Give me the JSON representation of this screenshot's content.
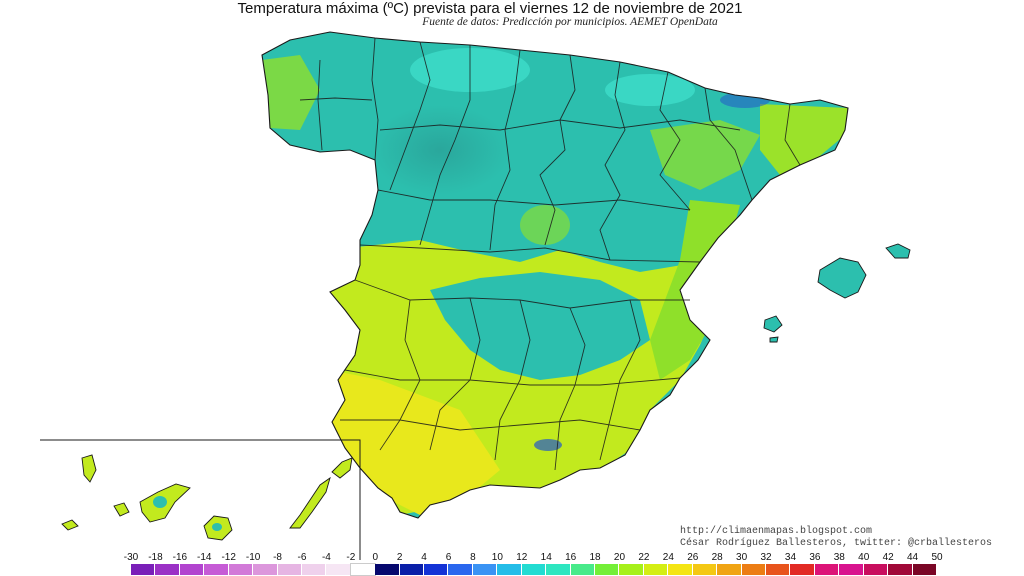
{
  "header": {
    "title": "Temperatura máxima (ºC) prevista para el viernes 12 de noviembre de 2021",
    "subtitle": "Fuente de datos: Predicción por municipios. AEMET OpenData"
  },
  "credits": {
    "url": "http://climaenmapas.blogspot.com",
    "author": "César Rodríguez Ballesteros, twitter: @crballesteros"
  },
  "legend": {
    "labels": [
      "-30",
      "-18",
      "-16",
      "-14",
      "-12",
      "-10",
      "-8",
      "-6",
      "-4",
      "-2",
      "0",
      "2",
      "4",
      "6",
      "8",
      "10",
      "12",
      "14",
      "16",
      "18",
      "20",
      "22",
      "24",
      "26",
      "28",
      "30",
      "32",
      "34",
      "36",
      "38",
      "40",
      "42",
      "44",
      "50"
    ],
    "colors": [
      "#7a1fb8",
      "#9b31c6",
      "#b244cf",
      "#c65bd6",
      "#d27ad8",
      "#dc97dc",
      "#e6b5e3",
      "#efd1ec",
      "#f6e6f4",
      "#ffffff",
      "#06086e",
      "#0a1fa8",
      "#1433d6",
      "#2a67ee",
      "#3a93f4",
      "#24bde8",
      "#22dcd2",
      "#2ee6c0",
      "#48ea8a",
      "#74ef38",
      "#a6f01a",
      "#d4ee14",
      "#f4e514",
      "#f4c814",
      "#f0a414",
      "#ec7d14",
      "#e8541c",
      "#e22a24",
      "#dc1478",
      "#d8148e",
      "#c80e5e",
      "#a00838",
      "#7a0626"
    ],
    "colors_meaning": "temperature colour scale from -30 to 50 ºC"
  },
  "colors": {
    "cool_teal": "#2cbfae",
    "light_teal": "#43d5c1",
    "yellow_green": "#bfe91c",
    "yellow": "#e9e51c",
    "green": "#8fe02a",
    "orange": "#f4a61c",
    "border": "#1a1a1a",
    "sea": "#ffffff"
  }
}
